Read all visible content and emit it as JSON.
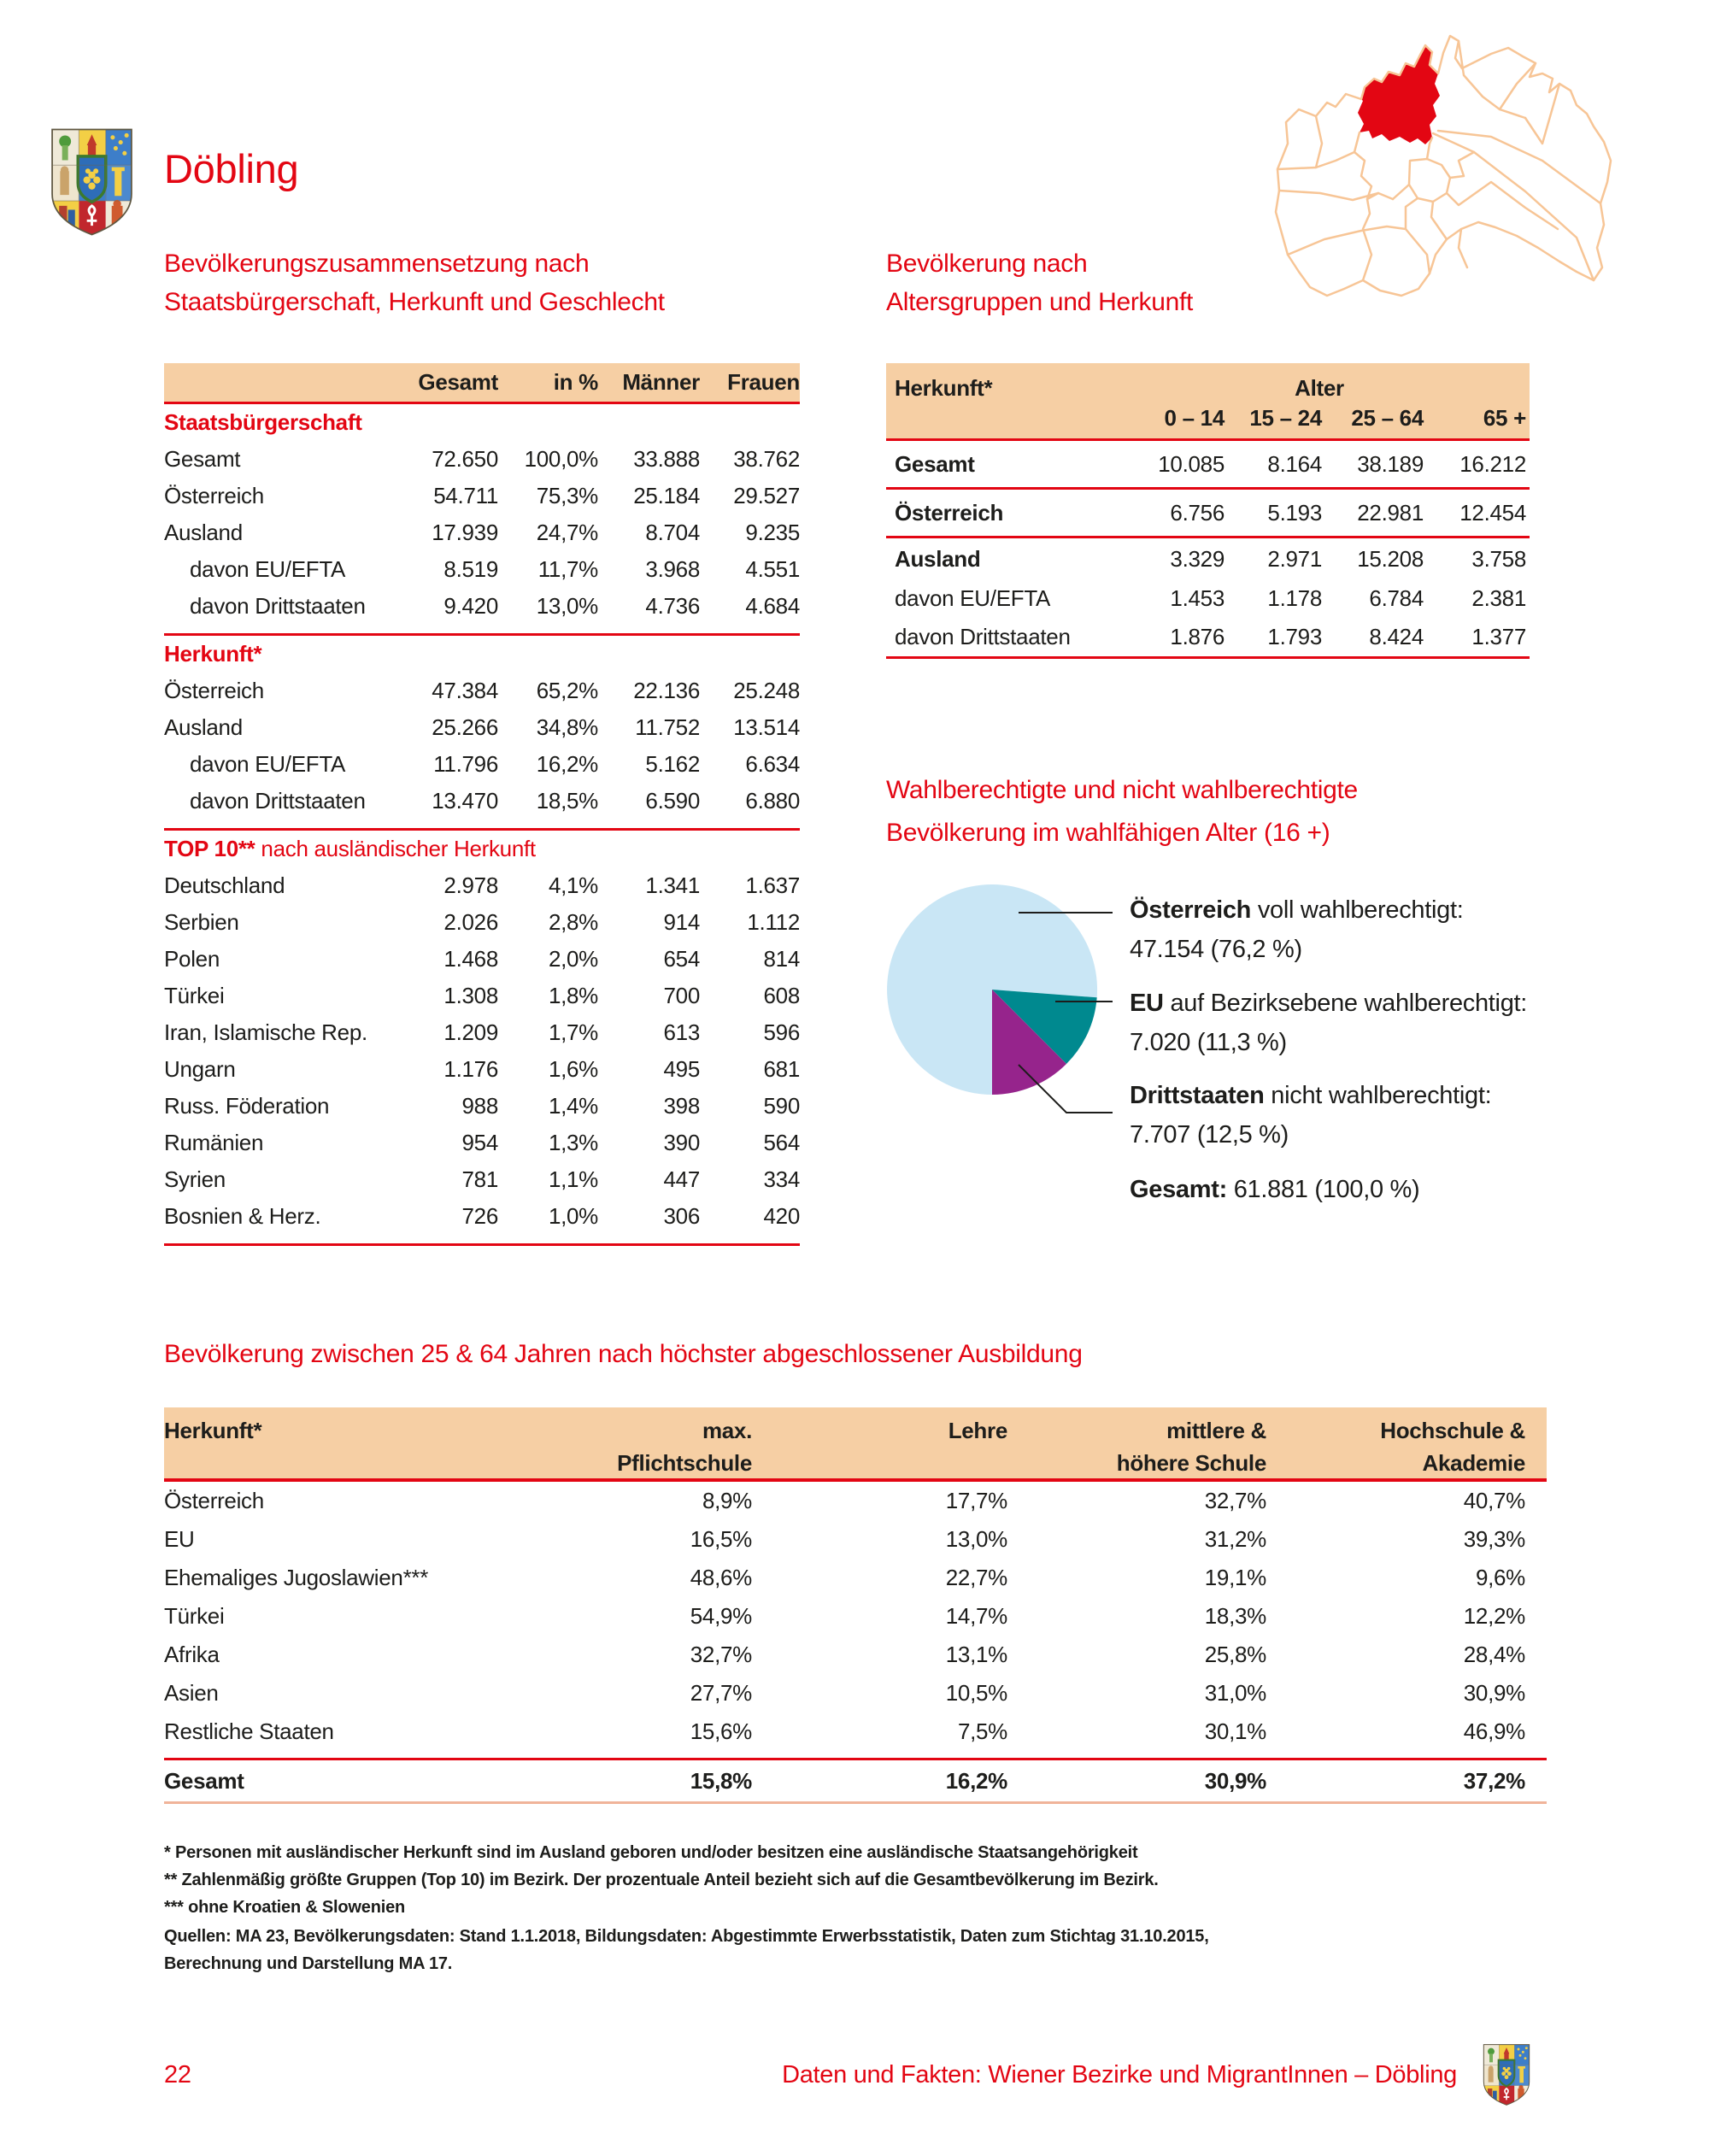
{
  "page": {
    "title": "Döbling",
    "page_number": "22",
    "footer_text": "Daten und Fakten: Wiener Bezirke und MigrantInnen – Döbling"
  },
  "colors": {
    "accent_red": "#e30613",
    "table_band_peach": "#f6cfa4",
    "map_outline_peach": "#f7c596",
    "pie_blue": "#c9e6f5",
    "pie_teal": "#00898f",
    "pie_purple": "#96248c"
  },
  "table1": {
    "title_lines": [
      "Bevölkerungszusammensetzung nach",
      "Staatsbürgerschaft, Herkunft und Geschlecht"
    ],
    "columns": [
      "Gesamt",
      "in %",
      "Männer",
      "Frauen"
    ],
    "sections": [
      {
        "heading": "Staatsbürgerschaft",
        "heading_suffix": "",
        "rows": [
          {
            "label": "Gesamt",
            "indent": false,
            "values": [
              "72.650",
              "100,0%",
              "33.888",
              "38.762"
            ]
          },
          {
            "label": "Österreich",
            "indent": false,
            "values": [
              "54.711",
              "75,3%",
              "25.184",
              "29.527"
            ]
          },
          {
            "label": "Ausland",
            "indent": false,
            "values": [
              "17.939",
              "24,7%",
              "8.704",
              "9.235"
            ]
          },
          {
            "label": "davon EU/EFTA",
            "indent": true,
            "values": [
              "8.519",
              "11,7%",
              "3.968",
              "4.551"
            ]
          },
          {
            "label": "davon Drittstaaten",
            "indent": true,
            "values": [
              "9.420",
              "13,0%",
              "4.736",
              "4.684"
            ]
          }
        ]
      },
      {
        "heading": "Herkunft*",
        "heading_suffix": "",
        "rows": [
          {
            "label": "Österreich",
            "indent": false,
            "values": [
              "47.384",
              "65,2%",
              "22.136",
              "25.248"
            ]
          },
          {
            "label": "Ausland",
            "indent": false,
            "values": [
              "25.266",
              "34,8%",
              "11.752",
              "13.514"
            ]
          },
          {
            "label": "davon EU/EFTA",
            "indent": true,
            "values": [
              "11.796",
              "16,2%",
              "5.162",
              "6.634"
            ]
          },
          {
            "label": "davon Drittstaaten",
            "indent": true,
            "values": [
              "13.470",
              "18,5%",
              "6.590",
              "6.880"
            ]
          }
        ]
      },
      {
        "heading": "TOP 10**",
        "heading_suffix": " nach ausländischer Herkunft",
        "rows": [
          {
            "label": "Deutschland",
            "indent": false,
            "values": [
              "2.978",
              "4,1%",
              "1.341",
              "1.637"
            ]
          },
          {
            "label": "Serbien",
            "indent": false,
            "values": [
              "2.026",
              "2,8%",
              "914",
              "1.112"
            ]
          },
          {
            "label": "Polen",
            "indent": false,
            "values": [
              "1.468",
              "2,0%",
              "654",
              "814"
            ]
          },
          {
            "label": "Türkei",
            "indent": false,
            "values": [
              "1.308",
              "1,8%",
              "700",
              "608"
            ]
          },
          {
            "label": "Iran, Islamische Rep.",
            "indent": false,
            "values": [
              "1.209",
              "1,7%",
              "613",
              "596"
            ]
          },
          {
            "label": "Ungarn",
            "indent": false,
            "values": [
              "1.176",
              "1,6%",
              "495",
              "681"
            ]
          },
          {
            "label": "Russ. Föderation",
            "indent": false,
            "values": [
              "988",
              "1,4%",
              "398",
              "590"
            ]
          },
          {
            "label": "Rumänien",
            "indent": false,
            "values": [
              "954",
              "1,3%",
              "390",
              "564"
            ]
          },
          {
            "label": "Syrien",
            "indent": false,
            "values": [
              "781",
              "1,1%",
              "447",
              "334"
            ]
          },
          {
            "label": "Bosnien & Herz.",
            "indent": false,
            "values": [
              "726",
              "1,0%",
              "306",
              "420"
            ]
          }
        ]
      }
    ]
  },
  "table2": {
    "title_lines": [
      "Bevölkerung nach",
      "Altersgruppen und Herkunft"
    ],
    "header": {
      "label": "Herkunft*",
      "group": "Alter",
      "columns": [
        "0 – 14",
        "15 – 24",
        "25 – 64",
        "65 +"
      ]
    },
    "rows": [
      {
        "label": "Gesamt",
        "bold": true,
        "indent": false,
        "rule_after": true,
        "values": [
          "10.085",
          "8.164",
          "38.189",
          "16.212"
        ]
      },
      {
        "label": "Österreich",
        "bold": true,
        "indent": false,
        "rule_after": true,
        "values": [
          "6.756",
          "5.193",
          "22.981",
          "12.454"
        ]
      },
      {
        "label": "Ausland",
        "bold": true,
        "indent": false,
        "rule_after": false,
        "values": [
          "3.329",
          "2.971",
          "15.208",
          "3.758"
        ]
      },
      {
        "label": "davon EU/EFTA",
        "bold": false,
        "indent": true,
        "rule_after": false,
        "values": [
          "1.453",
          "1.178",
          "6.784",
          "2.381"
        ]
      },
      {
        "label": "davon Drittstaaten",
        "bold": false,
        "indent": true,
        "rule_after": true,
        "values": [
          "1.876",
          "1.793",
          "8.424",
          "1.377"
        ]
      }
    ]
  },
  "chart_data": {
    "type": "pie",
    "title_lines": [
      "Wahlberechtigte und nicht wahlberechtigte",
      "Bevölkerung im wahlfähigen Alter (16 +)"
    ],
    "start_angle_deg": 180,
    "legend_position": "right",
    "slices": [
      {
        "name": "Österreich",
        "desc": " voll wahlberechtigt:",
        "display": "47.154 (76,2 %)",
        "value": 47154,
        "pct": 76.2,
        "color": "#c9e6f5"
      },
      {
        "name": "EU",
        "desc": " auf Bezirksebene wahlberechtigt:",
        "display": "7.020 (11,3 %)",
        "value": 7020,
        "pct": 11.3,
        "color": "#00898f"
      },
      {
        "name": "Drittstaaten",
        "desc": " nicht wahlberechtigt:",
        "display": "7.707 (12,5 %)",
        "value": 7707,
        "pct": 12.5,
        "color": "#96248c"
      }
    ],
    "total": {
      "label": "Gesamt:",
      "display": " 61.881 (100,0 %)"
    }
  },
  "table3": {
    "title": "Bevölkerung zwischen 25 & 64 Jahren nach höchster abgeschlossener Ausbildung",
    "header": {
      "label": "Herkunft*",
      "columns": [
        [
          "max.",
          "Pflichtschule"
        ],
        [
          "Lehre",
          ""
        ],
        [
          "mittlere &",
          "höhere Schule"
        ],
        [
          "Hochschule &",
          "Akademie"
        ]
      ]
    },
    "rows": [
      {
        "label": "Österreich",
        "values": [
          "8,9%",
          "17,7%",
          "32,7%",
          "40,7%"
        ]
      },
      {
        "label": "EU",
        "values": [
          "16,5%",
          "13,0%",
          "31,2%",
          "39,3%"
        ]
      },
      {
        "label": "Ehemaliges Jugoslawien***",
        "values": [
          "48,6%",
          "22,7%",
          "19,1%",
          "9,6%"
        ]
      },
      {
        "label": "Türkei",
        "values": [
          "54,9%",
          "14,7%",
          "18,3%",
          "12,2%"
        ]
      },
      {
        "label": "Afrika",
        "values": [
          "32,7%",
          "13,1%",
          "25,8%",
          "28,4%"
        ]
      },
      {
        "label": "Asien",
        "values": [
          "27,7%",
          "10,5%",
          "31,0%",
          "30,9%"
        ]
      },
      {
        "label": "Restliche Staaten",
        "values": [
          "15,6%",
          "7,5%",
          "30,1%",
          "46,9%"
        ]
      }
    ],
    "total_row": {
      "label": "Gesamt",
      "values": [
        "15,8%",
        "16,2%",
        "30,9%",
        "37,2%"
      ]
    }
  },
  "footnotes": [
    "* Personen mit ausländischer Herkunft sind im Ausland geboren und/oder besitzen eine ausländische Staatsangehörigkeit",
    "** Zahlenmäßig größte Gruppen (Top 10) im Bezirk. Der prozentuale Anteil bezieht sich auf die Gesamtbevölkerung im Bezirk.",
    "*** ohne Kroatien & Slowenien",
    "Quellen: MA 23, Bevölkerungsdaten: Stand 1.1.2018, Bildungsdaten: Abgestimmte Erwerbsstatistik, Daten zum Stichtag 31.10.2015,",
    "Berechnung und Darstellung MA 17."
  ]
}
